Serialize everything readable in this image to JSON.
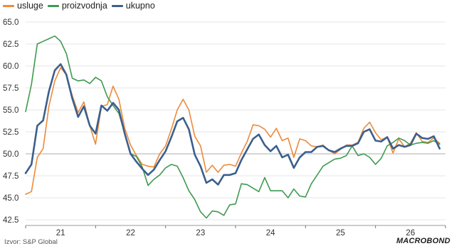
{
  "source": "Izvor: S&P Global",
  "brand": "MACROBOND",
  "chart_data": {
    "type": "line",
    "title": "",
    "xlabel": "",
    "ylabel": "",
    "ylim": [
      42.5,
      65.0
    ],
    "yticks": [
      42.5,
      45.0,
      47.5,
      50.0,
      52.5,
      55.0,
      57.5,
      60.0,
      62.5,
      65.0
    ],
    "ytick_labels": [
      "42.5",
      "45.0",
      "47.5",
      "50.0",
      "52.5",
      "55.0",
      "57.5",
      "60.0",
      "62.5",
      "65.0"
    ],
    "xlim": [
      2020.0,
      2026.0
    ],
    "xticks": [
      {
        "label": "21",
        "x": 2020.5
      },
      {
        "label": "22",
        "x": 2021.5
      },
      {
        "label": "23",
        "x": 2022.5
      },
      {
        "label": "24",
        "x": 2023.5
      },
      {
        "label": "25",
        "x": 2024.5
      },
      {
        "label": "26",
        "x": 2025.5
      }
    ],
    "reference_line": 50.0,
    "legend_position": "top-left",
    "series": [
      {
        "name": "usluge",
        "color": "#ED8A3A",
        "x": [
          2020.0,
          2020.083,
          2020.167,
          2020.25,
          2020.333,
          2020.417,
          2020.5,
          2020.583,
          2020.667,
          2020.75,
          2020.833,
          2020.917,
          2021.0,
          2021.083,
          2021.167,
          2021.25,
          2021.333,
          2021.417,
          2021.5,
          2021.583,
          2021.667,
          2021.75,
          2021.833,
          2021.917,
          2022.0,
          2022.083,
          2022.167,
          2022.25,
          2022.333,
          2022.417,
          2022.5,
          2022.583,
          2022.667,
          2022.75,
          2022.833,
          2022.917,
          2023.0,
          2023.083,
          2023.167,
          2023.25,
          2023.333,
          2023.417,
          2023.5,
          2023.583,
          2023.667,
          2023.75,
          2023.833,
          2023.917,
          2024.0,
          2024.083,
          2024.167,
          2024.25,
          2024.333,
          2024.417,
          2024.5,
          2024.583,
          2024.667,
          2024.75,
          2024.833,
          2024.917,
          2025.0,
          2025.083,
          2025.167,
          2025.25,
          2025.333,
          2025.417,
          2025.5,
          2025.583,
          2025.667,
          2025.75,
          2025.833,
          2025.917
        ],
        "values": [
          45.4,
          45.7,
          49.6,
          50.6,
          55.4,
          58.3,
          59.8,
          59.0,
          56.6,
          54.7,
          55.9,
          53.2,
          51.1,
          55.4,
          55.6,
          57.7,
          56.2,
          52.9,
          51.0,
          49.8,
          48.8,
          48.6,
          48.5,
          50.0,
          50.9,
          52.8,
          55.0,
          56.2,
          55.0,
          52.0,
          50.9,
          47.9,
          48.7,
          47.9,
          48.7,
          48.8,
          48.6,
          50.1,
          51.4,
          53.3,
          53.2,
          52.8,
          51.9,
          52.9,
          51.5,
          51.8,
          49.6,
          51.7,
          51.5,
          50.9,
          50.8,
          51.0,
          50.4,
          50.0,
          50.5,
          51.0,
          51.0,
          51.3,
          52.9,
          53.6,
          52.4,
          51.6,
          51.9,
          50.1,
          51.7,
          50.8,
          51.2,
          52.4,
          51.4,
          51.3,
          51.8,
          51.2
        ]
      },
      {
        "name": "proizvodnja",
        "color": "#3E9A50",
        "x": [
          2020.0,
          2020.083,
          2020.167,
          2020.25,
          2020.333,
          2020.417,
          2020.5,
          2020.583,
          2020.667,
          2020.75,
          2020.833,
          2020.917,
          2021.0,
          2021.083,
          2021.167,
          2021.25,
          2021.333,
          2021.417,
          2021.5,
          2021.583,
          2021.667,
          2021.75,
          2021.833,
          2021.917,
          2022.0,
          2022.083,
          2022.167,
          2022.25,
          2022.333,
          2022.417,
          2022.5,
          2022.583,
          2022.667,
          2022.75,
          2022.833,
          2022.917,
          2023.0,
          2023.083,
          2023.167,
          2023.25,
          2023.333,
          2023.417,
          2023.5,
          2023.583,
          2023.667,
          2023.75,
          2023.833,
          2023.917,
          2024.0,
          2024.083,
          2024.167,
          2024.25,
          2024.333,
          2024.417,
          2024.5,
          2024.583,
          2024.667,
          2024.75,
          2024.833,
          2024.917,
          2025.0,
          2025.083,
          2025.167,
          2025.25,
          2025.333,
          2025.417,
          2025.5,
          2025.583,
          2025.667,
          2025.75,
          2025.833,
          2025.917
        ],
        "values": [
          54.8,
          57.9,
          62.5,
          62.8,
          63.1,
          63.4,
          62.8,
          61.4,
          58.6,
          58.3,
          58.4,
          58.0,
          58.7,
          58.3,
          56.5,
          55.5,
          54.6,
          52.3,
          50.0,
          49.7,
          48.5,
          46.4,
          47.1,
          47.6,
          48.4,
          48.8,
          48.6,
          47.3,
          45.8,
          44.8,
          43.4,
          42.7,
          43.5,
          43.4,
          43.0,
          44.2,
          44.3,
          46.6,
          46.5,
          46.1,
          45.7,
          47.3,
          45.8,
          45.8,
          45.8,
          45.0,
          46.0,
          45.2,
          45.1,
          46.6,
          47.6,
          48.6,
          49.0,
          49.4,
          49.5,
          49.8,
          50.9,
          49.8,
          50.0,
          49.6,
          48.8,
          49.5,
          50.9,
          51.3,
          51.8,
          51.5,
          51.0,
          51.2,
          51.3,
          51.2,
          51.5,
          51.1
        ]
      },
      {
        "name": "ukupno",
        "color": "#3C5F8D",
        "x": [
          2020.0,
          2020.083,
          2020.167,
          2020.25,
          2020.333,
          2020.417,
          2020.5,
          2020.583,
          2020.667,
          2020.75,
          2020.833,
          2020.917,
          2021.0,
          2021.083,
          2021.167,
          2021.25,
          2021.333,
          2021.417,
          2021.5,
          2021.583,
          2021.667,
          2021.75,
          2021.833,
          2021.917,
          2022.0,
          2022.083,
          2022.167,
          2022.25,
          2022.333,
          2022.417,
          2022.5,
          2022.583,
          2022.667,
          2022.75,
          2022.833,
          2022.917,
          2023.0,
          2023.083,
          2023.167,
          2023.25,
          2023.333,
          2023.417,
          2023.5,
          2023.583,
          2023.667,
          2023.75,
          2023.833,
          2023.917,
          2024.0,
          2024.083,
          2024.167,
          2024.25,
          2024.333,
          2024.417,
          2024.5,
          2024.583,
          2024.667,
          2024.75,
          2024.833,
          2024.917,
          2025.0,
          2025.083,
          2025.167,
          2025.25,
          2025.333,
          2025.417,
          2025.5,
          2025.583,
          2025.667,
          2025.75,
          2025.833,
          2025.917
        ],
        "values": [
          47.8,
          48.8,
          53.2,
          53.8,
          57.1,
          59.5,
          60.2,
          59.0,
          56.3,
          54.2,
          55.4,
          53.2,
          52.3,
          55.5,
          54.9,
          55.8,
          55.0,
          52.3,
          50.0,
          49.1,
          48.3,
          47.6,
          48.2,
          49.3,
          50.3,
          51.9,
          53.7,
          54.1,
          52.8,
          49.9,
          48.6,
          46.7,
          47.1,
          46.5,
          47.6,
          47.6,
          47.8,
          49.3,
          50.5,
          51.7,
          52.2,
          51.0,
          50.3,
          50.9,
          49.6,
          49.9,
          48.4,
          49.6,
          50.2,
          50.2,
          50.8,
          50.9,
          50.4,
          50.2,
          50.6,
          50.9,
          50.9,
          51.2,
          52.5,
          52.8,
          51.5,
          51.4,
          51.9,
          50.6,
          51.0,
          50.8,
          51.0,
          52.3,
          51.8,
          51.7,
          52.0,
          50.6
        ]
      }
    ]
  }
}
